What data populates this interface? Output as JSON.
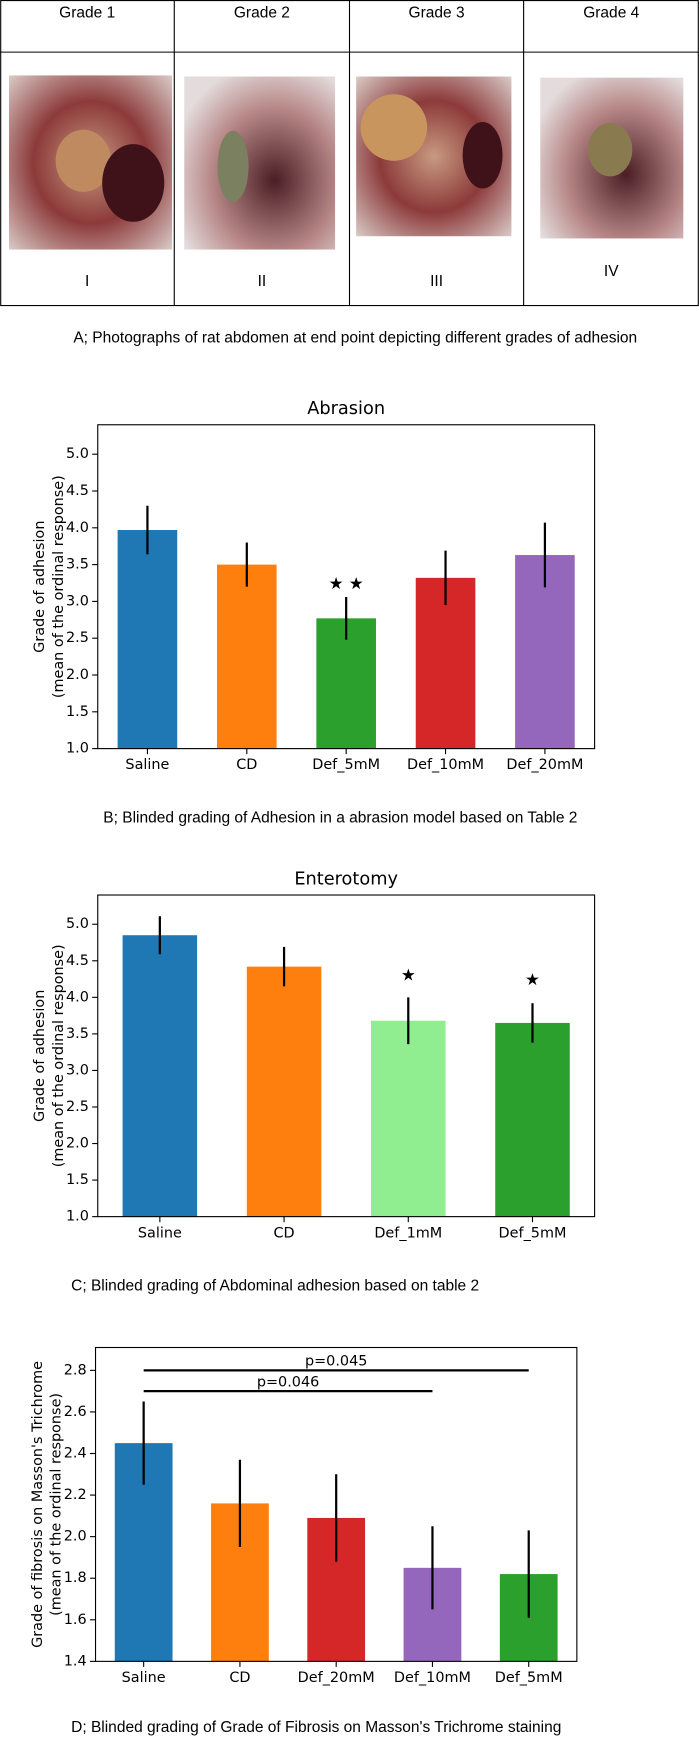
{
  "photo_panel": {
    "headers": [
      "Grade 1",
      "Grade 2",
      "Grade 3",
      "Grade 4"
    ],
    "labels": [
      "I",
      "II",
      "III",
      "IV"
    ],
    "caption": "A; Photographs of rat abdomen at end point depicting different grades of adhesion"
  },
  "chart_data": [
    {
      "type": "bar",
      "title": "Abrasion",
      "ylabel": [
        "Grade of adhesion",
        "(mean of the ordinal response)"
      ],
      "categories": [
        "Saline",
        "CD",
        "Def_5mM",
        "Def_10mM",
        "Def_20mM"
      ],
      "values": [
        3.97,
        3.5,
        2.77,
        3.32,
        3.63
      ],
      "errors": [
        0.33,
        0.3,
        0.29,
        0.37,
        0.44
      ],
      "colors": [
        "#1f77b4",
        "#ff7f0e",
        "#2ca02c",
        "#d62728",
        "#9467bd"
      ],
      "ylim": [
        1.0,
        5.4
      ],
      "yticks": [
        {
          "value": 1,
          "label": "1.0"
        },
        {
          "value": 1.5,
          "label": "1.5"
        },
        {
          "value": 2,
          "label": "2.0"
        },
        {
          "value": 2.5,
          "label": "2.5"
        },
        {
          "value": 3,
          "label": "3.0"
        },
        {
          "value": 3.5,
          "label": "3.5"
        },
        {
          "value": 4,
          "label": "4.0"
        },
        {
          "value": 4.5,
          "label": "4.5"
        },
        {
          "value": 5,
          "label": "5.0"
        }
      ],
      "annotations": [
        {
          "text": "★ ★",
          "category": "Def_5mM",
          "y": 3.23
        }
      ],
      "caption": "B; Blinded grading of Adhesion in a abrasion model based on Table 2"
    },
    {
      "type": "bar",
      "title": "Enterotomy",
      "ylabel": [
        "Grade of adhesion",
        "(mean of the ordinal response)"
      ],
      "categories": [
        "Saline",
        "CD",
        "Def_1mM",
        "Def_5mM"
      ],
      "values": [
        4.85,
        4.42,
        3.68,
        3.65
      ],
      "errors": [
        0.26,
        0.27,
        0.32,
        0.27
      ],
      "colors": [
        "#1f77b4",
        "#ff7f0e",
        "#90ee90",
        "#2ca02c"
      ],
      "ylim": [
        1.0,
        5.4
      ],
      "yticks": [
        {
          "value": 1,
          "label": "1.0"
        },
        {
          "value": 1.5,
          "label": "1.5"
        },
        {
          "value": 2,
          "label": "2.0"
        },
        {
          "value": 2.5,
          "label": "2.5"
        },
        {
          "value": 3,
          "label": "3.0"
        },
        {
          "value": 3.5,
          "label": "3.5"
        },
        {
          "value": 4,
          "label": "4.0"
        },
        {
          "value": 4.5,
          "label": "4.5"
        },
        {
          "value": 5,
          "label": "5.0"
        }
      ],
      "annotations": [
        {
          "text": "★",
          "category": "Def_1mM",
          "y": 4.29
        },
        {
          "text": "★",
          "category": "Def_5mM",
          "y": 4.23
        }
      ],
      "caption": "C; Blinded grading of Abdominal adhesion based on table 2"
    },
    {
      "type": "bar",
      "ylabel": [
        "Grade of fibrosis on Masson's Trichrome",
        "(mean of the ordinal response)"
      ],
      "categories": [
        "Saline",
        "CD",
        "Def_20mM",
        "Def_10mM",
        "Def_5mM"
      ],
      "values": [
        2.45,
        2.16,
        2.09,
        1.85,
        1.82
      ],
      "errors": [
        0.2,
        0.21,
        0.21,
        0.2,
        0.21
      ],
      "colors": [
        "#1f77b4",
        "#ff7f0e",
        "#d62728",
        "#9467bd",
        "#2ca02c"
      ],
      "ylim": [
        1.4,
        2.91
      ],
      "yticks": [
        1.4,
        1.6,
        1.8,
        {
          "value": 2,
          "label": "2.0"
        },
        2.2,
        2.4,
        2.6,
        2.8
      ],
      "brackets": [
        {
          "text": "p=0.046",
          "from": "Saline",
          "to": "Def_10mM",
          "y": 2.7
        },
        {
          "text": "p=0.045",
          "from": "Saline",
          "to": "Def_5mM",
          "y": 2.8
        }
      ],
      "caption": "D; Blinded grading of Grade of Fibrosis on Masson's Trichrome staining"
    }
  ]
}
